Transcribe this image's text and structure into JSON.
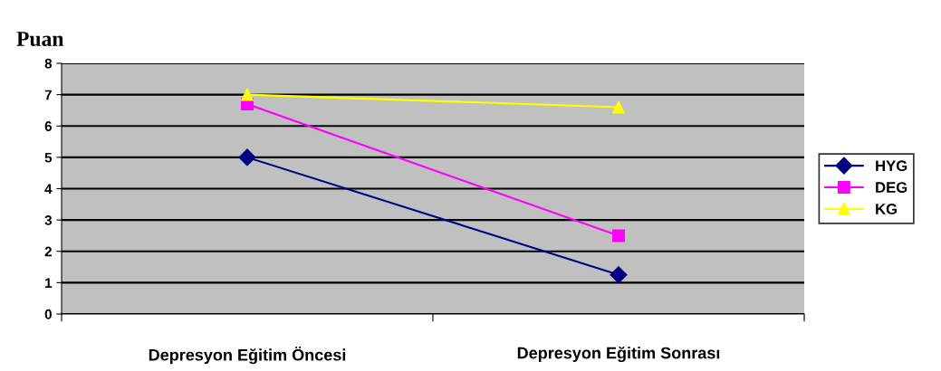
{
  "chart_data": {
    "type": "line",
    "title": "Puan",
    "categories": [
      "Depresyon Eğitim Öncesi",
      "Depresyon Eğitim Sonrası"
    ],
    "series": [
      {
        "name": "HYG",
        "color": "#000080",
        "values": [
          5,
          1.25
        ],
        "marker": "diamond"
      },
      {
        "name": "DEG",
        "color": "#ff00ff",
        "values": [
          6.7,
          2.5
        ],
        "marker": "square"
      },
      {
        "name": "KG",
        "color": "#ffff00",
        "values": [
          7,
          6.6
        ],
        "marker": "triangle"
      }
    ],
    "ylim": [
      0,
      8
    ],
    "yticks": [
      0,
      1,
      2,
      3,
      4,
      5,
      6,
      7,
      8
    ],
    "grid": "y",
    "legend": "right",
    "line_style": "solid"
  }
}
